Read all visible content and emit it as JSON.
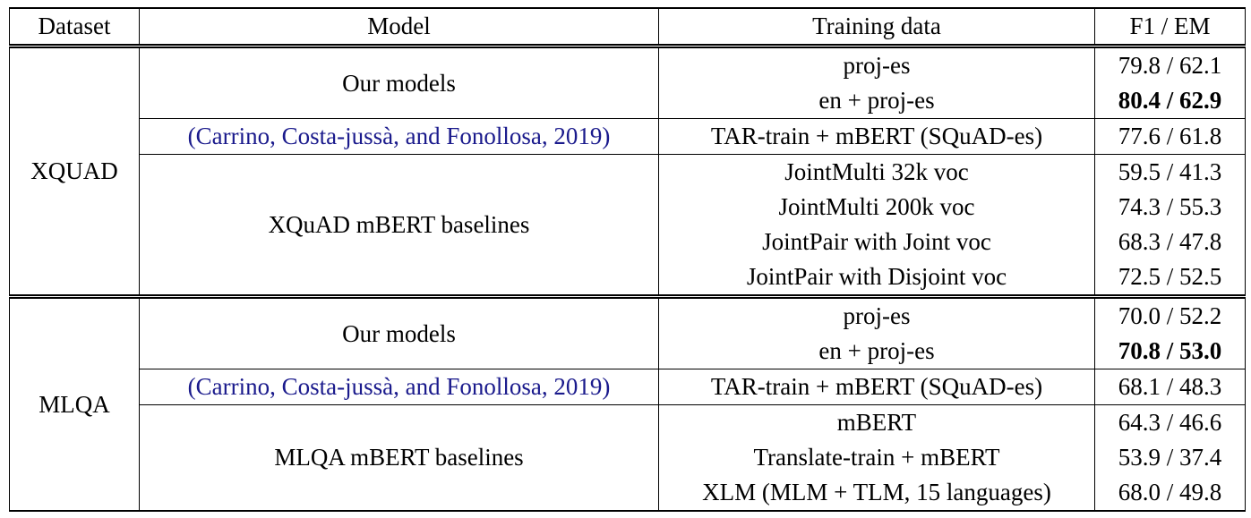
{
  "header": [
    "Dataset",
    "Model",
    "Training data",
    "F1 / EM"
  ],
  "sections": [
    {
      "dataset": "XQUAD",
      "groups": [
        {
          "model": "Our models",
          "rows": [
            {
              "training": "proj-es",
              "score": "79.8 / 62.1"
            },
            {
              "training": "en + proj-es",
              "score": "80.4 / 62.9",
              "bold": true
            }
          ]
        },
        {
          "model": "(Carrino, Costa-jussà, and Fonollosa, 2019)",
          "citation": true,
          "rows": [
            {
              "training": "TAR-train + mBERT (SQuAD-es)",
              "score": "77.6 / 61.8"
            }
          ]
        },
        {
          "model": "XQuAD mBERT baselines",
          "rows": [
            {
              "training": "JointMulti 32k voc",
              "score": "59.5 / 41.3"
            },
            {
              "training": "JointMulti 200k voc",
              "score": "74.3 / 55.3"
            },
            {
              "training": "JointPair with Joint voc",
              "score": "68.3 / 47.8"
            },
            {
              "training": "JointPair with Disjoint voc",
              "score": "72.5 / 52.5"
            }
          ]
        }
      ]
    },
    {
      "dataset": "MLQA",
      "groups": [
        {
          "model": "Our models",
          "rows": [
            {
              "training": "proj-es",
              "score": "70.0 / 52.2"
            },
            {
              "training": "en + proj-es",
              "score": "70.8 / 53.0",
              "bold": true
            }
          ]
        },
        {
          "model": "(Carrino, Costa-jussà, and Fonollosa, 2019)",
          "citation": true,
          "rows": [
            {
              "training": "TAR-train + mBERT (SQuAD-es)",
              "score": "68.1 / 48.3"
            }
          ]
        },
        {
          "model": "MLQA mBERT baselines",
          "rows": [
            {
              "training": "mBERT",
              "score": "64.3 / 46.6"
            },
            {
              "training": "Translate-train + mBERT",
              "score": "53.9 / 37.4"
            },
            {
              "training": "XLM (MLM + TLM, 15 languages)",
              "score": "68.0 / 49.8"
            }
          ]
        }
      ]
    }
  ]
}
